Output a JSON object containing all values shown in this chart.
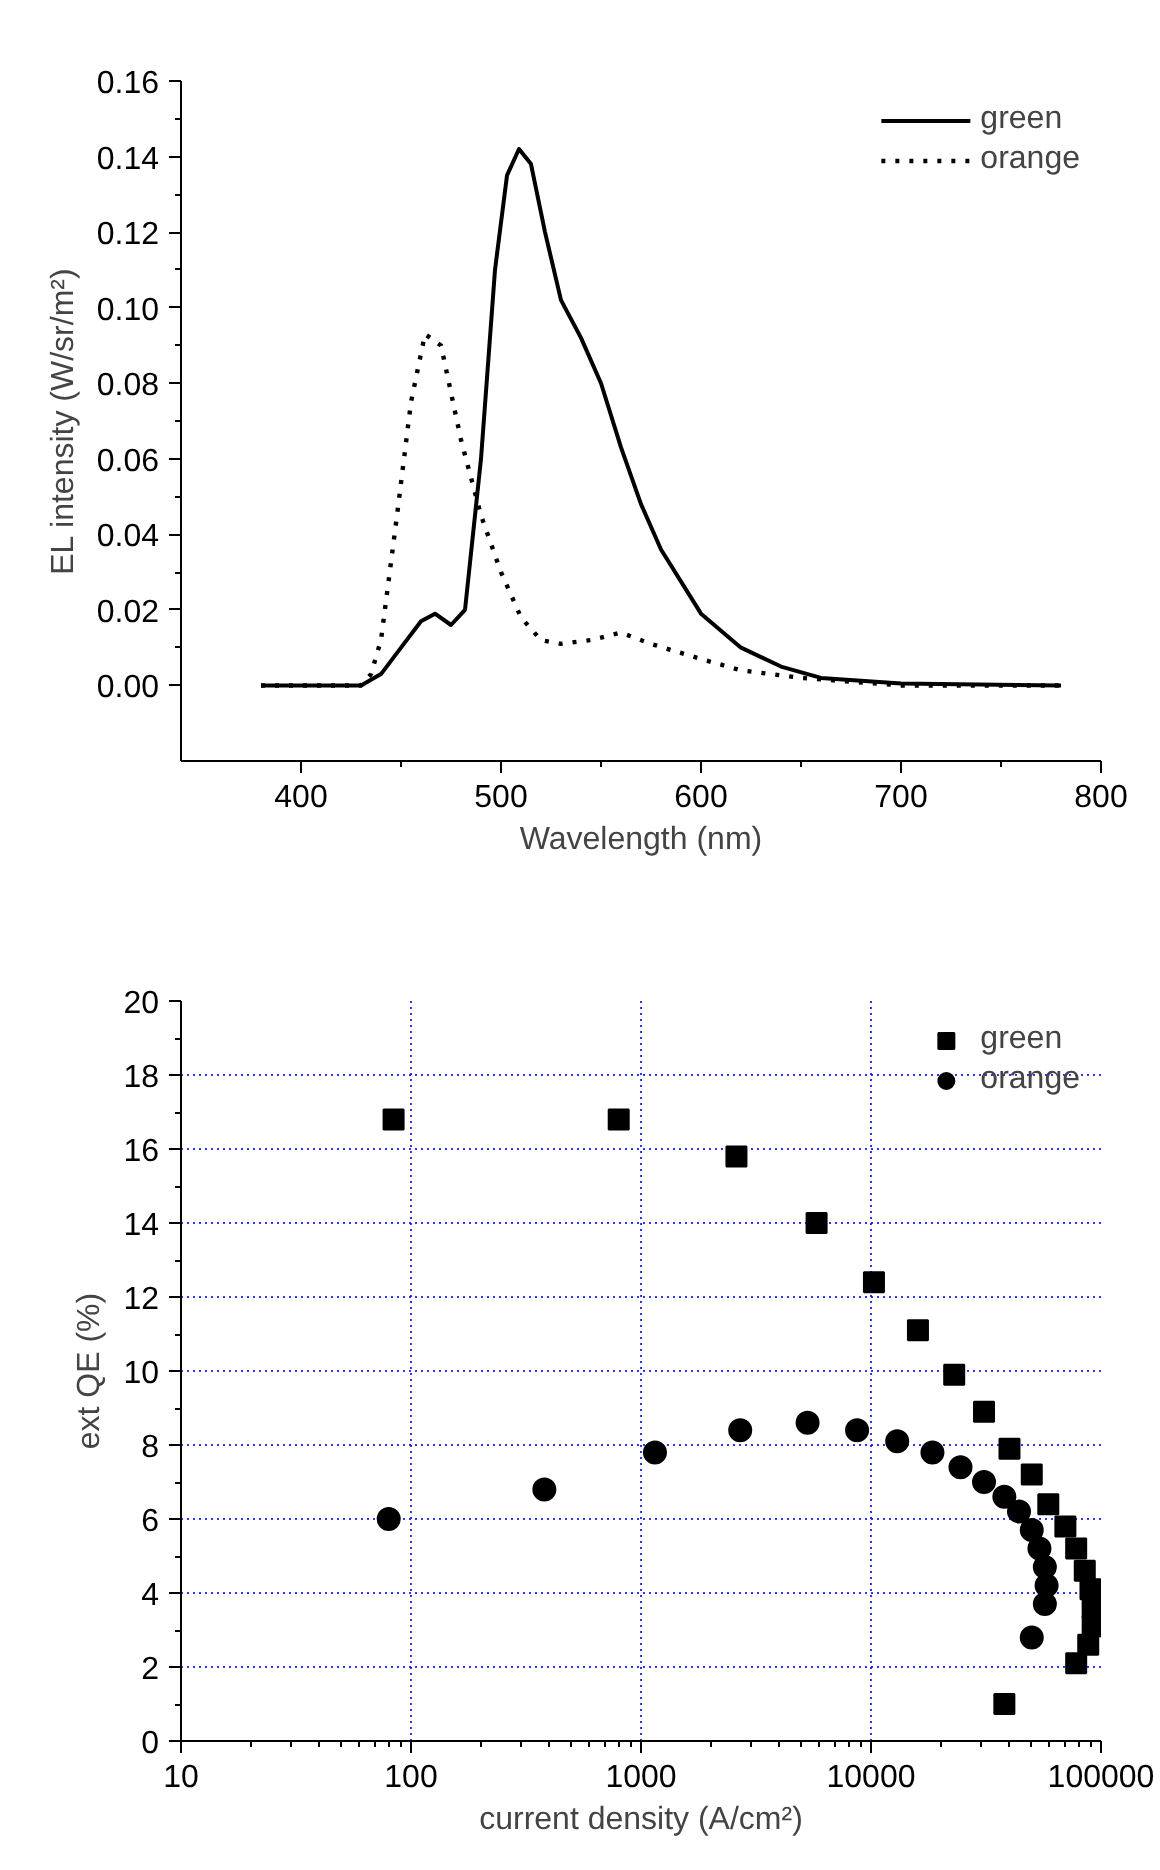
{
  "chart_data": [
    {
      "type": "line",
      "xlabel": "Wavelength (nm)",
      "ylabel": "EL intensity (W/sr/m²)",
      "xlim": [
        340,
        800
      ],
      "ylim": [
        -0.02,
        0.16
      ],
      "xticks": [
        400,
        500,
        600,
        700,
        800
      ],
      "yticks": [
        {
          "value": 0,
          "label": "0.00"
        },
        {
          "value": 0.02,
          "label": "0.02"
        },
        {
          "value": 0.04,
          "label": "0.04"
        },
        {
          "value": 0.06,
          "label": "0.06"
        },
        {
          "value": 0.08,
          "label": "0.08"
        },
        {
          "value": 0.1,
          "label": "0.10"
        },
        {
          "value": 0.12,
          "label": "0.12"
        },
        {
          "value": 0.14,
          "label": "0.14"
        },
        {
          "value": 0.16,
          "label": "0.16"
        }
      ],
      "grid": false,
      "legend": "top right",
      "series": [
        {
          "name": "green",
          "color": "#000000",
          "line_style": "solid",
          "x": [
            380,
            430,
            440,
            450,
            460,
            467,
            475,
            482,
            490,
            497,
            503,
            509,
            515,
            522,
            530,
            540,
            550,
            560,
            570,
            580,
            600,
            620,
            640,
            660,
            700,
            780
          ],
          "values": [
            0,
            0,
            0.003,
            0.01,
            0.017,
            0.019,
            0.016,
            0.02,
            0.06,
            0.11,
            0.135,
            0.142,
            0.138,
            0.12,
            0.102,
            0.092,
            0.08,
            0.063,
            0.048,
            0.036,
            0.019,
            0.01,
            0.005,
            0.002,
            0.0005,
            0
          ]
        },
        {
          "name": "orange",
          "color": "#000000",
          "line_style": "dotted",
          "x": [
            380,
            430,
            435,
            440,
            448,
            455,
            462,
            470,
            480,
            490,
            500,
            510,
            520,
            530,
            545,
            560,
            575,
            600,
            620,
            650,
            700,
            780
          ],
          "values": [
            0,
            0,
            0.003,
            0.012,
            0.045,
            0.075,
            0.093,
            0.09,
            0.065,
            0.045,
            0.03,
            0.018,
            0.012,
            0.011,
            0.012,
            0.014,
            0.011,
            0.007,
            0.004,
            0.002,
            0,
            0
          ]
        }
      ]
    },
    {
      "type": "scatter",
      "xlabel": "current density (A/cm²)",
      "ylabel": "ext QE (%)",
      "log": "x",
      "xlim": [
        10,
        100000
      ],
      "ylim": [
        0,
        20
      ],
      "xticks": [
        10,
        100,
        1000,
        10000,
        100000
      ],
      "yticks": [
        0,
        2,
        4,
        6,
        8,
        10,
        12,
        14,
        16,
        18,
        20
      ],
      "grid": true,
      "legend": "top right",
      "series": [
        {
          "name": "green",
          "color": "#000000",
          "marker": "square",
          "x": [
            84,
            800,
            2600,
            5800,
            10300,
            16000,
            23000,
            31000,
            40000,
            50000,
            59000,
            70000,
            78000,
            85000,
            90000,
            92000,
            92000,
            88000,
            78000,
            38000
          ],
          "values": [
            16.8,
            16.8,
            15.8,
            14.0,
            12.4,
            11.1,
            9.9,
            8.9,
            7.9,
            7.2,
            6.4,
            5.8,
            5.2,
            4.6,
            4.1,
            3.6,
            3.1,
            2.6,
            2.1,
            1.0
          ]
        },
        {
          "name": "orange",
          "color": "#000000",
          "marker": "circle",
          "x": [
            80,
            380,
            1150,
            2700,
            5300,
            8700,
            13000,
            18500,
            24500,
            31000,
            38000,
            44000,
            50000,
            54000,
            57000,
            58000,
            57000,
            50000
          ],
          "values": [
            6.0,
            6.8,
            7.8,
            8.4,
            8.6,
            8.4,
            8.1,
            7.8,
            7.4,
            7.0,
            6.6,
            6.2,
            5.7,
            5.2,
            4.7,
            4.2,
            3.7,
            2.8
          ]
        }
      ]
    }
  ]
}
